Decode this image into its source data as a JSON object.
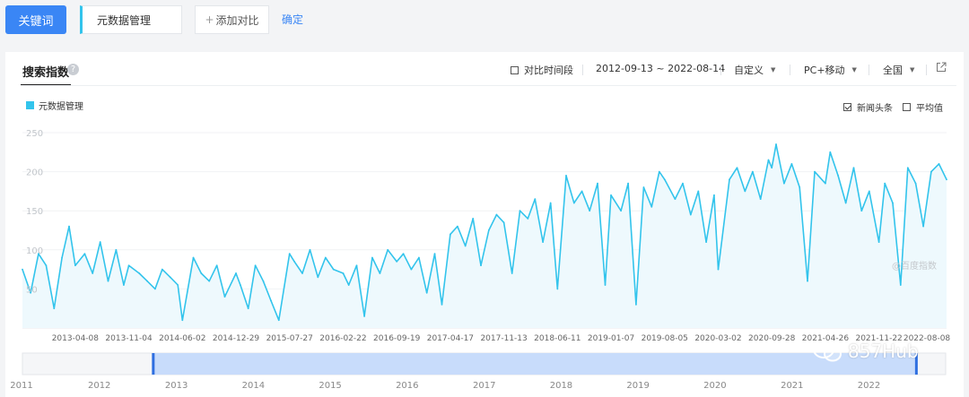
{
  "toolbar": {
    "keyword_button": "关键词",
    "keyword": "元数据管理",
    "add_compare": "添加对比",
    "confirm": "确定"
  },
  "panel": {
    "title": "搜索指数",
    "help_icon": "question-circle-icon",
    "compare_period": "对比时间段",
    "date_range": "2012-09-13 ~ 2022-08-14",
    "custom": "自定义",
    "device": "PC+移动",
    "region": "全国",
    "share_icon": "external-link-icon"
  },
  "options": {
    "news": "新闻头条",
    "news_checked": true,
    "average": "平均值",
    "average_checked": false
  },
  "watermark": "@百度指数",
  "brand": {
    "text": "857Hub",
    "icon": "wechat-icon"
  },
  "colors": {
    "series": "#33c4ec",
    "accent": "#3a86f5",
    "area": "#eef9fd"
  },
  "chart_data": {
    "type": "line",
    "title": "",
    "xlabel": "",
    "ylabel": "",
    "ylim": [
      0,
      250
    ],
    "yticks": [
      50,
      100,
      150,
      200,
      250
    ],
    "grid": true,
    "legend_position": "top-left",
    "x_tick_labels": [
      "2013-04-08",
      "2013-11-04",
      "2014-06-02",
      "2014-12-29",
      "2015-07-27",
      "2016-02-22",
      "2016-09-19",
      "2017-04-17",
      "2017-11-13",
      "2018-06-11",
      "2019-01-07",
      "2019-08-05",
      "2020-03-02",
      "2020-09-28",
      "2021-04-26",
      "2021-11-22",
      "2022-08-08"
    ],
    "series": [
      {
        "name": "元数据管理",
        "points": [
          [
            "2012-09-13",
            75
          ],
          [
            "2012-10-15",
            45
          ],
          [
            "2012-11-15",
            95
          ],
          [
            "2012-12-15",
            80
          ],
          [
            "2013-01-15",
            25
          ],
          [
            "2013-02-15",
            90
          ],
          [
            "2013-03-15",
            130
          ],
          [
            "2013-04-08",
            80
          ],
          [
            "2013-05-15",
            95
          ],
          [
            "2013-06-15",
            70
          ],
          [
            "2013-07-15",
            110
          ],
          [
            "2013-08-15",
            60
          ],
          [
            "2013-09-15",
            100
          ],
          [
            "2013-10-15",
            55
          ],
          [
            "2013-11-04",
            80
          ],
          [
            "2013-12-15",
            70
          ],
          [
            "2014-01-15",
            60
          ],
          [
            "2014-02-15",
            50
          ],
          [
            "2014-03-15",
            75
          ],
          [
            "2014-04-15",
            65
          ],
          [
            "2014-05-15",
            55
          ],
          [
            "2014-06-02",
            10
          ],
          [
            "2014-07-15",
            90
          ],
          [
            "2014-08-15",
            70
          ],
          [
            "2014-09-15",
            60
          ],
          [
            "2014-10-15",
            80
          ],
          [
            "2014-11-15",
            40
          ],
          [
            "2014-12-29",
            70
          ],
          [
            "2015-01-15",
            55
          ],
          [
            "2015-02-15",
            25
          ],
          [
            "2015-03-15",
            80
          ],
          [
            "2015-04-15",
            60
          ],
          [
            "2015-05-15",
            35
          ],
          [
            "2015-06-15",
            10
          ],
          [
            "2015-07-27",
            95
          ],
          [
            "2015-08-15",
            85
          ],
          [
            "2015-09-15",
            70
          ],
          [
            "2015-10-15",
            100
          ],
          [
            "2015-11-15",
            65
          ],
          [
            "2015-12-15",
            90
          ],
          [
            "2016-01-15",
            75
          ],
          [
            "2016-02-22",
            70
          ],
          [
            "2016-03-15",
            55
          ],
          [
            "2016-04-15",
            80
          ],
          [
            "2016-05-15",
            15
          ],
          [
            "2016-06-15",
            90
          ],
          [
            "2016-07-15",
            70
          ],
          [
            "2016-08-15",
            100
          ],
          [
            "2016-09-19",
            85
          ],
          [
            "2016-10-15",
            95
          ],
          [
            "2016-11-15",
            75
          ],
          [
            "2016-12-15",
            90
          ],
          [
            "2017-01-15",
            45
          ],
          [
            "2017-02-15",
            95
          ],
          [
            "2017-03-15",
            30
          ],
          [
            "2017-04-17",
            120
          ],
          [
            "2017-05-15",
            130
          ],
          [
            "2017-06-15",
            105
          ],
          [
            "2017-07-15",
            140
          ],
          [
            "2017-08-15",
            80
          ],
          [
            "2017-09-15",
            125
          ],
          [
            "2017-10-15",
            145
          ],
          [
            "2017-11-13",
            135
          ],
          [
            "2017-12-15",
            70
          ],
          [
            "2018-01-15",
            150
          ],
          [
            "2018-02-15",
            140
          ],
          [
            "2018-03-15",
            165
          ],
          [
            "2018-04-15",
            110
          ],
          [
            "2018-05-15",
            160
          ],
          [
            "2018-06-11",
            50
          ],
          [
            "2018-07-15",
            195
          ],
          [
            "2018-08-15",
            160
          ],
          [
            "2018-09-15",
            175
          ],
          [
            "2018-10-15",
            150
          ],
          [
            "2018-11-15",
            185
          ],
          [
            "2018-12-15",
            55
          ],
          [
            "2019-01-07",
            170
          ],
          [
            "2019-02-15",
            150
          ],
          [
            "2019-03-15",
            185
          ],
          [
            "2019-04-15",
            30
          ],
          [
            "2019-05-15",
            180
          ],
          [
            "2019-06-15",
            155
          ],
          [
            "2019-07-15",
            200
          ],
          [
            "2019-08-05",
            190
          ],
          [
            "2019-09-15",
            165
          ],
          [
            "2019-10-15",
            185
          ],
          [
            "2019-11-15",
            145
          ],
          [
            "2019-12-15",
            175
          ],
          [
            "2020-01-15",
            110
          ],
          [
            "2020-02-15",
            170
          ],
          [
            "2020-03-02",
            75
          ],
          [
            "2020-04-15",
            190
          ],
          [
            "2020-05-15",
            205
          ],
          [
            "2020-06-15",
            175
          ],
          [
            "2020-07-15",
            200
          ],
          [
            "2020-08-15",
            165
          ],
          [
            "2020-09-15",
            215
          ],
          [
            "2020-09-28",
            205
          ],
          [
            "2020-10-15",
            235
          ],
          [
            "2020-11-15",
            185
          ],
          [
            "2020-12-15",
            210
          ],
          [
            "2021-01-15",
            180
          ],
          [
            "2021-02-15",
            60
          ],
          [
            "2021-03-15",
            200
          ],
          [
            "2021-04-26",
            185
          ],
          [
            "2021-05-15",
            225
          ],
          [
            "2021-06-15",
            195
          ],
          [
            "2021-07-15",
            160
          ],
          [
            "2021-08-15",
            205
          ],
          [
            "2021-09-15",
            150
          ],
          [
            "2021-10-15",
            175
          ],
          [
            "2021-11-22",
            110
          ],
          [
            "2021-12-15",
            185
          ],
          [
            "2022-01-15",
            160
          ],
          [
            "2022-02-15",
            55
          ],
          [
            "2022-03-15",
            205
          ],
          [
            "2022-04-15",
            185
          ],
          [
            "2022-05-15",
            130
          ],
          [
            "2022-06-15",
            200
          ],
          [
            "2022-07-15",
            210
          ],
          [
            "2022-08-14",
            190
          ]
        ]
      }
    ],
    "navigator": {
      "year_labels": [
        "2011",
        "2012",
        "2013",
        "2014",
        "2015",
        "2016",
        "2017",
        "2018",
        "2019",
        "2020",
        "2021",
        "2022"
      ],
      "selected_range": [
        "2012-09-13",
        "2022-08-14"
      ]
    }
  }
}
